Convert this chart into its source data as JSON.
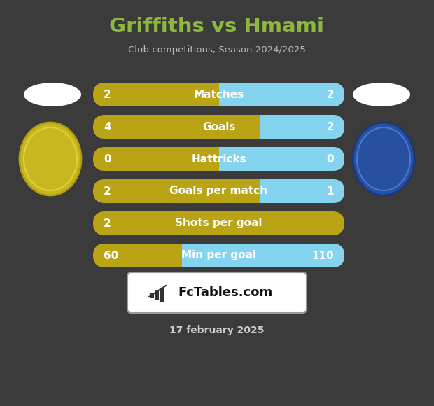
{
  "title": "Griffiths vs Hmami",
  "subtitle": "Club competitions, Season 2024/2025",
  "date": "17 february 2025",
  "bg": "#3b3b3b",
  "title_color": "#8cb840",
  "subtitle_color": "#bbbbbb",
  "date_color": "#cccccc",
  "gold": "#b8a415",
  "cyan": "#85d4ef",
  "white": "#ffffff",
  "rows": [
    {
      "label": "Matches",
      "lv": "2",
      "rv": "2",
      "lf": 0.5,
      "rf": 0.5,
      "has_right": true
    },
    {
      "label": "Goals",
      "lv": "4",
      "rv": "2",
      "lf": 0.667,
      "rf": 0.333,
      "has_right": true
    },
    {
      "label": "Hattricks",
      "lv": "0",
      "rv": "0",
      "lf": 0.5,
      "rf": 0.5,
      "has_right": true
    },
    {
      "label": "Goals per match",
      "lv": "2",
      "rv": "1",
      "lf": 0.667,
      "rf": 0.333,
      "has_right": true
    },
    {
      "label": "Shots per goal",
      "lv": "2",
      "rv": null,
      "lf": 1.0,
      "rf": 0.0,
      "has_right": false
    },
    {
      "label": "Min per goal",
      "lv": "60",
      "rv": "110",
      "lf": 0.353,
      "rf": 0.647,
      "has_right": true
    }
  ]
}
